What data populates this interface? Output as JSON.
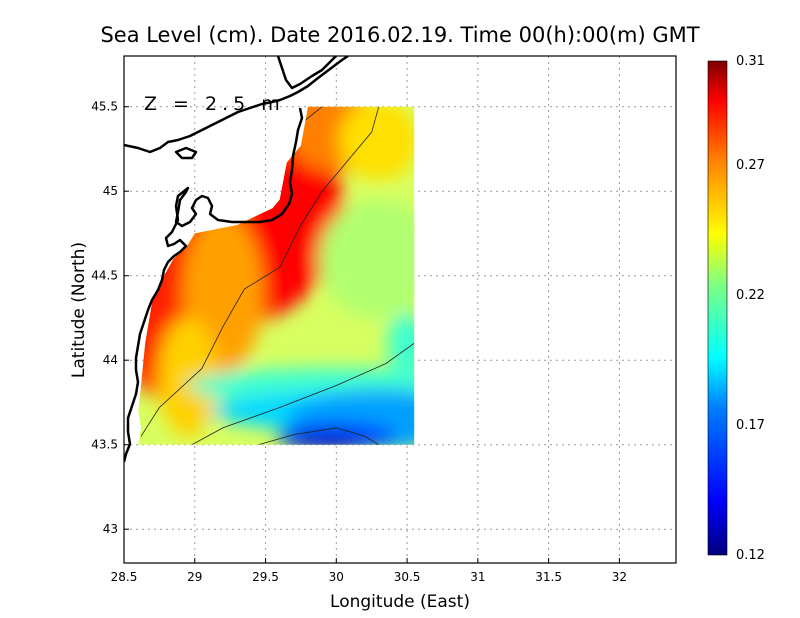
{
  "chart_data": {
    "type": "heatmap",
    "title": "Sea Level (cm). Date 2016.02.19. Time 00(h):00(m) GMT",
    "annotation": "Z = 2.5 m",
    "xlabel": "Longitude (East)",
    "ylabel": "Latitude (North)",
    "xlim": [
      28.5,
      32.4
    ],
    "ylim": [
      42.8,
      45.8
    ],
    "x_ticks": [
      28.5,
      29,
      29.5,
      30,
      30.5,
      31,
      31.5,
      32
    ],
    "x_tick_labels": [
      "28.5",
      "29",
      "29.5",
      "30",
      "30.5",
      "31",
      "31.5",
      "32"
    ],
    "y_ticks": [
      43,
      43.5,
      44,
      44.5,
      45,
      45.5
    ],
    "y_tick_labels": [
      "43",
      "43.5",
      "44",
      "44.5",
      "45",
      "45.5"
    ],
    "grid": true,
    "colorbar": {
      "min": 0.12,
      "max": 0.31,
      "ticks": [
        0.12,
        0.17,
        0.22,
        0.27,
        0.31
      ],
      "tick_labels": [
        "0.12",
        "0.17",
        "0.22",
        "0.27",
        "0.31"
      ],
      "colors": [
        "#00007f",
        "#0000ff",
        "#0080ff",
        "#00ffff",
        "#80ff80",
        "#ffff00",
        "#ff8000",
        "#ff0000",
        "#7f0000"
      ]
    },
    "field": {
      "lon_range": [
        28.6,
        30.55
      ],
      "lat_range": [
        43.5,
        45.5
      ],
      "contour_levels": [
        0.17,
        0.22,
        0.27,
        0.31
      ]
    }
  }
}
